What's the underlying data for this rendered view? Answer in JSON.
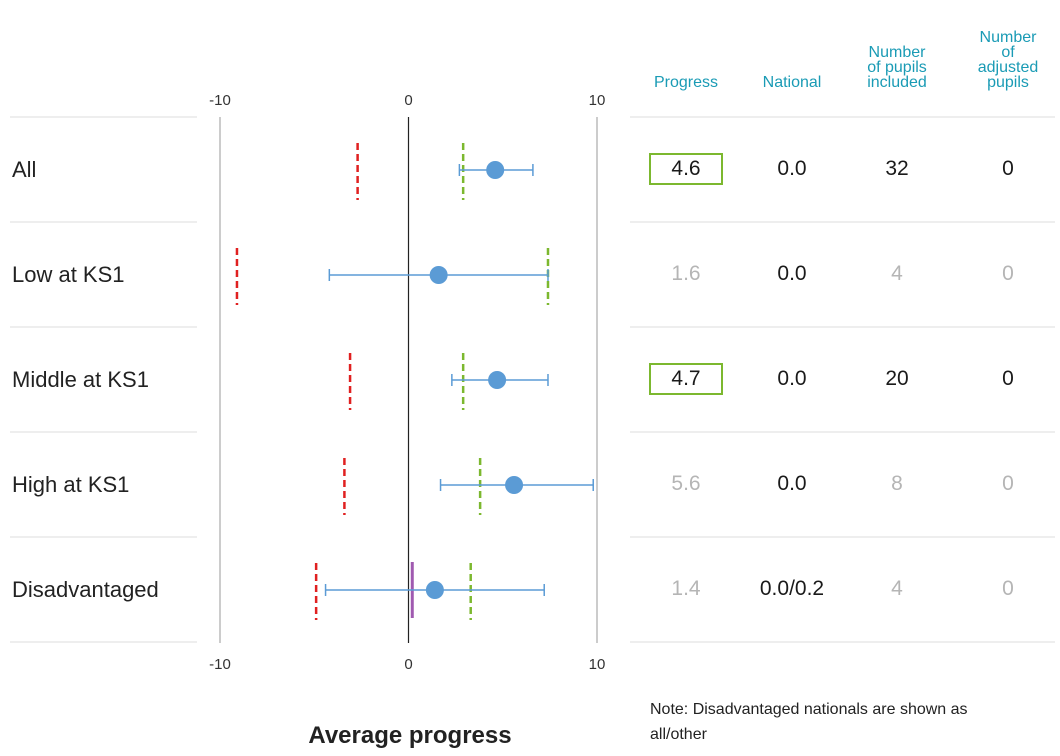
{
  "chart_data": {
    "type": "scatter",
    "xlabel": "Average progress",
    "xlim": [
      -10,
      10
    ],
    "x_ticks": [
      "-10",
      "0",
      "10"
    ],
    "grid": true,
    "rows": [
      {
        "label": "All",
        "progress": 4.6,
        "ci_low": 2.7,
        "ci_high": 6.6,
        "red_marker": -2.7,
        "green_marker": 2.9,
        "purple_marker": null
      },
      {
        "label": "Low at KS1",
        "progress": 1.6,
        "ci_low": -4.2,
        "ci_high": 7.4,
        "red_marker": -9.1,
        "green_marker": 7.4,
        "purple_marker": null
      },
      {
        "label": "Middle at KS1",
        "progress": 4.7,
        "ci_low": 2.3,
        "ci_high": 7.4,
        "red_marker": -3.1,
        "green_marker": 2.9,
        "purple_marker": null
      },
      {
        "label": "High at KS1",
        "progress": 5.6,
        "ci_low": 1.7,
        "ci_high": 9.8,
        "red_marker": -3.4,
        "green_marker": 3.8,
        "purple_marker": null
      },
      {
        "label": "Disadvantaged",
        "progress": 1.4,
        "ci_low": -4.4,
        "ci_high": 7.2,
        "red_marker": -4.9,
        "green_marker": 3.3,
        "purple_marker": 0.2
      }
    ],
    "colors": {
      "point": "#5b9bd5",
      "whisker": "#5b9bd5",
      "red": "#e02020",
      "green": "#7cb82f",
      "purple": "#a05ab0"
    }
  },
  "table": {
    "headers": [
      "Progress",
      "National",
      "Number\nof pupils\nincluded",
      "Number\nof\nadjusted\npupils"
    ],
    "rows": [
      {
        "progress": "4.6",
        "national": "0.0",
        "pupils": "32",
        "adjusted": "0",
        "highlight": true
      },
      {
        "progress": "1.6",
        "national": "0.0",
        "pupils": "4",
        "adjusted": "0",
        "highlight": false
      },
      {
        "progress": "4.7",
        "national": "0.0",
        "pupils": "20",
        "adjusted": "0",
        "highlight": true
      },
      {
        "progress": "5.6",
        "national": "0.0",
        "pupils": "8",
        "adjusted": "0",
        "highlight": false
      },
      {
        "progress": "1.4",
        "national": "0.0/0.2",
        "pupils": "4",
        "adjusted": "0",
        "highlight": false
      }
    ]
  },
  "note": "Note: Disadvantaged nationals are shown as all/other"
}
